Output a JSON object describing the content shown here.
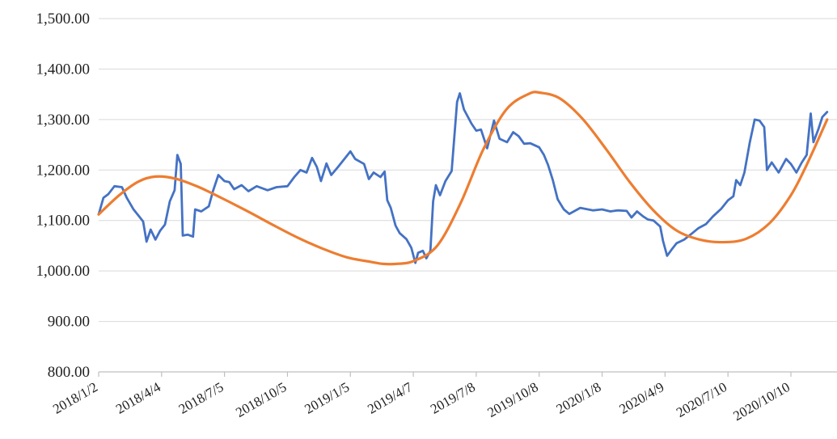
{
  "chart_data": {
    "type": "line",
    "title": "",
    "xlabel": "",
    "ylabel": "",
    "ylim": [
      800,
      1500
    ],
    "y_ticks": [
      "1,500.00",
      "1,400.00",
      "1,300.00",
      "1,200.00",
      "1,100.00",
      "1,000.00",
      "900.00",
      "800.00"
    ],
    "y_tick_values": [
      1500,
      1400,
      1300,
      1200,
      1100,
      1000,
      900,
      800
    ],
    "x_tick_labels": [
      "2018/1/2",
      "2018/4/4",
      "2018/7/5",
      "2018/10/5",
      "2019/1/5",
      "2019/4/7",
      "2019/7/8",
      "2019/10/8",
      "2020/1/8",
      "2020/4/9",
      "2020/7/10",
      "2020/10/10"
    ],
    "grid": true,
    "legend": "none",
    "series": [
      {
        "color": "#4472C4",
        "points": [
          [
            "2018/1/2",
            1112
          ],
          [
            "2018/1/9",
            1145
          ],
          [
            "2018/1/16",
            1152
          ],
          [
            "2018/1/25",
            1168
          ],
          [
            "2018/2/5",
            1166
          ],
          [
            "2018/2/12",
            1145
          ],
          [
            "2018/2/22",
            1122
          ],
          [
            "2018/3/1",
            1110
          ],
          [
            "2018/3/8",
            1098
          ],
          [
            "2018/3/13",
            1058
          ],
          [
            "2018/3/19",
            1082
          ],
          [
            "2018/3/26",
            1062
          ],
          [
            "2018/4/2",
            1080
          ],
          [
            "2018/4/9",
            1092
          ],
          [
            "2018/4/16",
            1138
          ],
          [
            "2018/4/23",
            1160
          ],
          [
            "2018/4/27",
            1230
          ],
          [
            "2018/5/2",
            1212
          ],
          [
            "2018/5/5",
            1070
          ],
          [
            "2018/5/12",
            1072
          ],
          [
            "2018/5/20",
            1068
          ],
          [
            "2018/5/23",
            1122
          ],
          [
            "2018/6/1",
            1118
          ],
          [
            "2018/6/12",
            1128
          ],
          [
            "2018/6/18",
            1158
          ],
          [
            "2018/6/26",
            1190
          ],
          [
            "2018/7/5",
            1178
          ],
          [
            "2018/7/12",
            1176
          ],
          [
            "2018/7/19",
            1162
          ],
          [
            "2018/7/30",
            1170
          ],
          [
            "2018/8/9",
            1158
          ],
          [
            "2018/8/21",
            1168
          ],
          [
            "2018/9/6",
            1160
          ],
          [
            "2018/9/19",
            1166
          ],
          [
            "2018/10/5",
            1168
          ],
          [
            "2018/10/15",
            1186
          ],
          [
            "2018/10/24",
            1200
          ],
          [
            "2018/11/2",
            1195
          ],
          [
            "2018/11/10",
            1224
          ],
          [
            "2018/11/17",
            1206
          ],
          [
            "2018/11/23",
            1178
          ],
          [
            "2018/12/1",
            1213
          ],
          [
            "2018/12/8",
            1190
          ],
          [
            "2018/12/18",
            1206
          ],
          [
            "2019/1/5",
            1237
          ],
          [
            "2019/1/12",
            1222
          ],
          [
            "2019/1/25",
            1212
          ],
          [
            "2019/2/1",
            1182
          ],
          [
            "2019/2/8",
            1195
          ],
          [
            "2019/2/18",
            1186
          ],
          [
            "2019/2/24",
            1197
          ],
          [
            "2019/2/28",
            1140
          ],
          [
            "2019/3/5",
            1125
          ],
          [
            "2019/3/12",
            1090
          ],
          [
            "2019/3/18",
            1075
          ],
          [
            "2019/3/28",
            1063
          ],
          [
            "2019/4/4",
            1046
          ],
          [
            "2019/4/10",
            1016
          ],
          [
            "2019/4/14",
            1036
          ],
          [
            "2019/4/21",
            1040
          ],
          [
            "2019/4/26",
            1025
          ],
          [
            "2019/5/2",
            1040
          ],
          [
            "2019/5/6",
            1138
          ],
          [
            "2019/5/10",
            1170
          ],
          [
            "2019/5/16",
            1150
          ],
          [
            "2019/5/24",
            1178
          ],
          [
            "2019/6/2",
            1198
          ],
          [
            "2019/6/10",
            1335
          ],
          [
            "2019/6/14",
            1352
          ],
          [
            "2019/6/20",
            1320
          ],
          [
            "2019/7/1",
            1292
          ],
          [
            "2019/7/8",
            1278
          ],
          [
            "2019/7/15",
            1280
          ],
          [
            "2019/7/24",
            1243
          ],
          [
            "2019/8/3",
            1298
          ],
          [
            "2019/8/11",
            1262
          ],
          [
            "2019/8/22",
            1255
          ],
          [
            "2019/8/31",
            1275
          ],
          [
            "2019/9/8",
            1267
          ],
          [
            "2019/9/16",
            1252
          ],
          [
            "2019/9/25",
            1253
          ],
          [
            "2019/10/8",
            1245
          ],
          [
            "2019/10/15",
            1230
          ],
          [
            "2019/10/21",
            1210
          ],
          [
            "2019/10/28",
            1180
          ],
          [
            "2019/11/4",
            1142
          ],
          [
            "2019/11/13",
            1122
          ],
          [
            "2019/11/21",
            1113
          ],
          [
            "2019/12/7",
            1125
          ],
          [
            "2019/12/26",
            1120
          ],
          [
            "2020/1/8",
            1122
          ],
          [
            "2020/1/20",
            1118
          ],
          [
            "2020/1/31",
            1120
          ],
          [
            "2020/2/13",
            1119
          ],
          [
            "2020/2/20",
            1106
          ],
          [
            "2020/2/28",
            1118
          ],
          [
            "2020/3/8",
            1108
          ],
          [
            "2020/3/15",
            1102
          ],
          [
            "2020/3/23",
            1100
          ],
          [
            "2020/4/2",
            1088
          ],
          [
            "2020/4/6",
            1060
          ],
          [
            "2020/4/12",
            1030
          ],
          [
            "2020/4/20",
            1045
          ],
          [
            "2020/4/26",
            1055
          ],
          [
            "2020/5/7",
            1062
          ],
          [
            "2020/5/19",
            1075
          ],
          [
            "2020/5/28",
            1085
          ],
          [
            "2020/6/8",
            1093
          ],
          [
            "2020/6/18",
            1108
          ],
          [
            "2020/6/30",
            1123
          ],
          [
            "2020/7/10",
            1140
          ],
          [
            "2020/7/18",
            1148
          ],
          [
            "2020/7/22",
            1180
          ],
          [
            "2020/7/28",
            1170
          ],
          [
            "2020/8/3",
            1195
          ],
          [
            "2020/8/11",
            1255
          ],
          [
            "2020/8/18",
            1300
          ],
          [
            "2020/8/25",
            1298
          ],
          [
            "2020/9/1",
            1285
          ],
          [
            "2020/9/5",
            1200
          ],
          [
            "2020/9/12",
            1215
          ],
          [
            "2020/9/22",
            1195
          ],
          [
            "2020/10/3",
            1222
          ],
          [
            "2020/10/10",
            1212
          ],
          [
            "2020/10/18",
            1195
          ],
          [
            "2020/10/26",
            1215
          ],
          [
            "2020/11/2",
            1230
          ],
          [
            "2020/11/8",
            1312
          ],
          [
            "2020/11/12",
            1255
          ],
          [
            "2020/11/19",
            1280
          ],
          [
            "2020/11/25",
            1305
          ],
          [
            "2020/12/2",
            1315
          ]
        ]
      },
      {
        "color": "#ED7D31",
        "points": [
          [
            "2018/1/2",
            1112
          ],
          [
            "2018/2/1",
            1150
          ],
          [
            "2018/3/1",
            1177
          ],
          [
            "2018/3/26",
            1187
          ],
          [
            "2018/4/24",
            1183
          ],
          [
            "2018/5/27",
            1167
          ],
          [
            "2018/6/30",
            1145
          ],
          [
            "2018/8/8",
            1118
          ],
          [
            "2018/9/14",
            1091
          ],
          [
            "2018/10/20",
            1066
          ],
          [
            "2018/11/24",
            1045
          ],
          [
            "2018/12/31",
            1027
          ],
          [
            "2019/2/4",
            1018
          ],
          [
            "2019/2/22",
            1014
          ],
          [
            "2019/3/13",
            1014
          ],
          [
            "2019/4/8",
            1020
          ],
          [
            "2019/5/12",
            1050
          ],
          [
            "2019/6/15",
            1134
          ],
          [
            "2019/7/18",
            1240
          ],
          [
            "2019/8/21",
            1320
          ],
          [
            "2019/9/23",
            1351
          ],
          [
            "2019/10/10",
            1353
          ],
          [
            "2019/11/7",
            1342
          ],
          [
            "2019/12/10",
            1302
          ],
          [
            "2020/1/14",
            1241
          ],
          [
            "2020/2/18",
            1175
          ],
          [
            "2020/3/23",
            1120
          ],
          [
            "2020/4/26",
            1080
          ],
          [
            "2020/5/30",
            1062
          ],
          [
            "2020/7/3",
            1057
          ],
          [
            "2020/8/6",
            1064
          ],
          [
            "2020/9/9",
            1095
          ],
          [
            "2020/10/10",
            1150
          ],
          [
            "2020/11/2",
            1210
          ],
          [
            "2020/12/2",
            1300
          ]
        ]
      }
    ]
  }
}
